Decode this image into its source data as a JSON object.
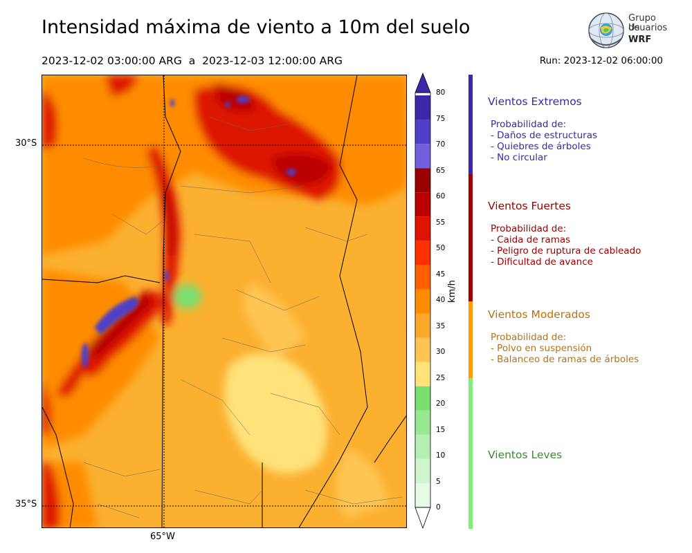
{
  "header": {
    "title": "Intensidad máxima de viento a 10m del suelo",
    "period": "2023-12-02 03:00:00 ARG  a  2023-12-03 12:00:00 ARG",
    "run": "Run: 2023-12-02 06:00:00"
  },
  "logo": {
    "line1": "Grupo de",
    "line2": "Usuarios",
    "line3": "WRF"
  },
  "map": {
    "lat_labels": [
      "30°S",
      "35°S"
    ],
    "lon_labels": [
      "65°W"
    ]
  },
  "colorbar": {
    "unit": "km/h",
    "ticks": [
      "0",
      "5",
      "10",
      "15",
      "20",
      "25",
      "30",
      "35",
      "40",
      "45",
      "50",
      "55",
      "60",
      "65",
      "70",
      "75",
      "80"
    ],
    "colors": [
      "#e6fbe6",
      "#d0f5cf",
      "#b6efb3",
      "#97e891",
      "#79e070",
      "#ffe27a",
      "#ffc552",
      "#fba82b",
      "#ff8c00",
      "#ff6000",
      "#ff3000",
      "#dd1500",
      "#bb0000",
      "#990000",
      "#7060e0",
      "#5040c8",
      "#3a28a8"
    ]
  },
  "categories": [
    {
      "title": "Vientos Extremos",
      "color": "#3a28a8",
      "lines": [
        "Probabilidad de:",
        "- Daños de estructuras",
        "- Quiebres de árboles",
        "- No circular"
      ]
    },
    {
      "title": "Vientos Fuertes",
      "color": "#990000",
      "lines": [
        "Probabilidad de:",
        "- Caida de ramas",
        "- Peligro de ruptura de cableado",
        "- Dificultad de avance"
      ]
    },
    {
      "title": "Vientos Moderados",
      "color": "#b8720d",
      "lines": [
        "Probabilidad de:",
        "- Polvo en suspensión",
        "- Balanceo de ramas de árboles"
      ]
    },
    {
      "title": "Vientos Leves",
      "color": "#3d8a33",
      "lines": []
    }
  ],
  "category_bar_colors": [
    "#3a28a8",
    "#a00000",
    "#ff9c00",
    "#7ef07a"
  ]
}
